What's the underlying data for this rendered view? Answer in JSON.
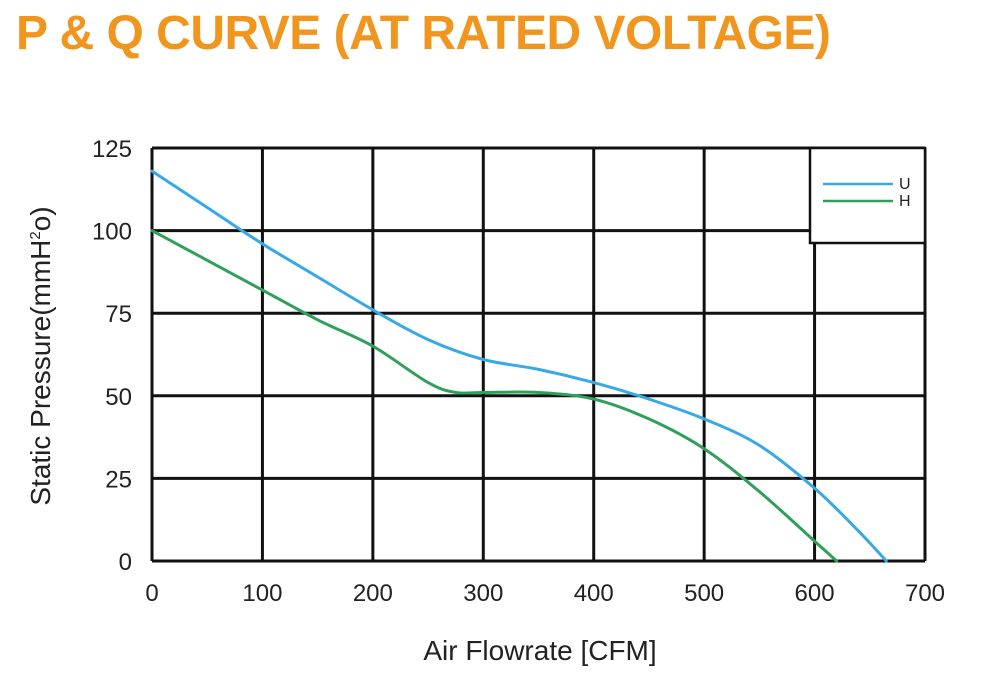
{
  "title": "P & Q CURVE (AT RATED VOLTAGE)",
  "chart_data": {
    "type": "line",
    "xlabel": "Air  Flowrate   [CFM]",
    "ylabel_main": "Static Pressure(mmH",
    "ylabel_sup": "2",
    "ylabel_end": "o)",
    "xlim": [
      0,
      700
    ],
    "ylim": [
      0,
      125
    ],
    "x_ticks": [
      "0",
      "100",
      "200",
      "300",
      "400",
      "500",
      "600",
      "700"
    ],
    "y_ticks": [
      "0",
      "25",
      "50",
      "75",
      "100",
      "125"
    ],
    "grid": true,
    "legend_position": "top-right",
    "series": [
      {
        "name": "U",
        "color": "#37a9e6",
        "x": [
          0,
          50,
          100,
          150,
          200,
          250,
          300,
          350,
          400,
          450,
          500,
          550,
          600,
          640,
          665
        ],
        "y": [
          118,
          107,
          96,
          86,
          76,
          67,
          61,
          58,
          54,
          49,
          43,
          35,
          22,
          9,
          0
        ]
      },
      {
        "name": "H",
        "color": "#2fa05a",
        "x": [
          0,
          50,
          100,
          150,
          200,
          250,
          275,
          300,
          350,
          400,
          450,
          500,
          550,
          600,
          620
        ],
        "y": [
          100,
          91,
          82,
          73,
          65,
          54,
          51,
          51,
          51,
          49,
          43,
          34,
          21,
          6,
          0
        ]
      }
    ]
  }
}
